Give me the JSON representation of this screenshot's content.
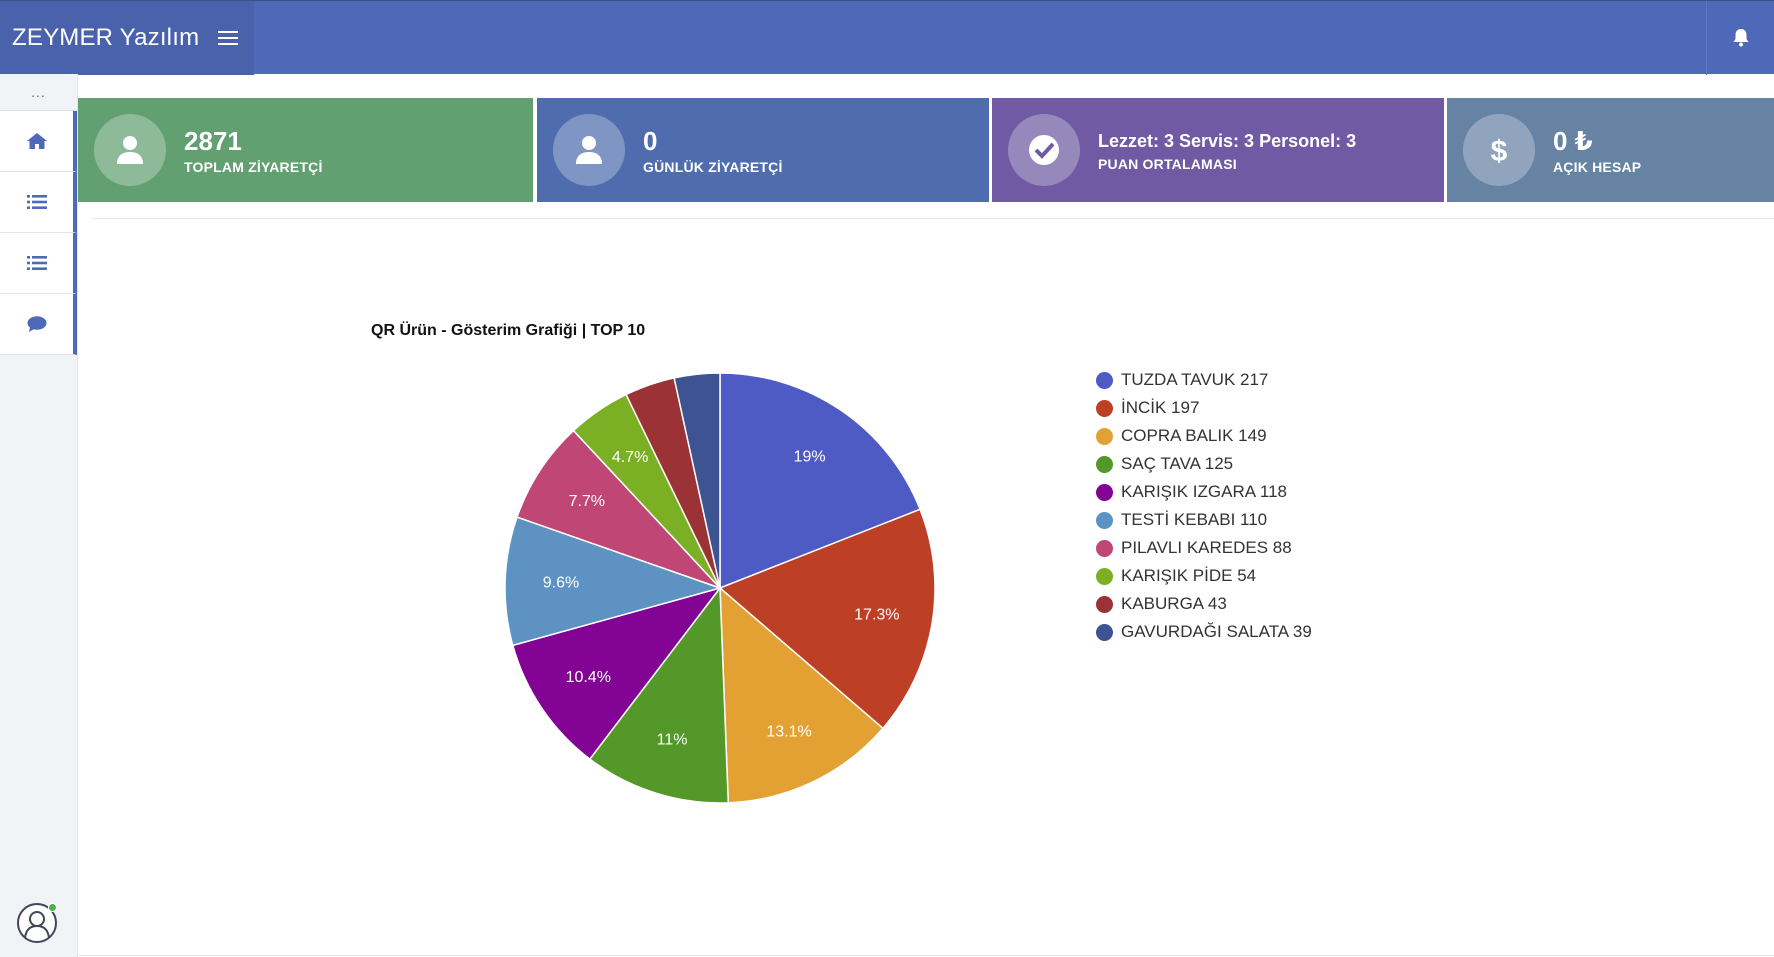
{
  "app": {
    "title": "ZEYMER Yazılım"
  },
  "sidebar": {
    "more_label": "...",
    "items": [
      {
        "icon": "home-icon"
      },
      {
        "icon": "list-icon"
      },
      {
        "icon": "list-icon"
      },
      {
        "icon": "comment-icon"
      }
    ]
  },
  "stats": [
    {
      "value": "2871",
      "label": "TOPLAM ZİYARETÇİ",
      "icon": "user-icon",
      "color": "#62a072"
    },
    {
      "value": "0",
      "label": "GÜNLÜK ZİYARETÇİ",
      "icon": "user-icon",
      "color": "#4e6cae"
    },
    {
      "value": "Lezzet: 3 Servis: 3 Personel: 3",
      "label": "PUAN ORTALAMASI",
      "icon": "check-icon",
      "color": "#705aa3"
    },
    {
      "value": "0 ₺",
      "label": "AÇIK HESAP",
      "icon": "dollar-icon",
      "color": "#6683a4"
    }
  ],
  "chart_data": {
    "type": "pie",
    "title": "QR Ürün - Gösterim Grafiği | TOP 10",
    "legend_position": "right",
    "slices": [
      {
        "name": "TUZDA TAVUK",
        "value": 217,
        "color": "#4f5bc4",
        "label": "19%"
      },
      {
        "name": "İNCİK",
        "value": 197,
        "color": "#bc3f26",
        "label": "17.3%"
      },
      {
        "name": "COPRA BALIK",
        "value": 149,
        "color": "#e3a133",
        "label": "13.1%"
      },
      {
        "name": "SAÇ TAVA",
        "value": 125,
        "color": "#54982a",
        "label": "11%"
      },
      {
        "name": "KARIŞIK IZGARA",
        "value": 118,
        "color": "#820394",
        "label": "10.4%"
      },
      {
        "name": "TESTİ KEBABI",
        "value": 110,
        "color": "#5d92c3",
        "label": "9.6%"
      },
      {
        "name": "PILAVLI KAREDES",
        "value": 88,
        "color": "#c04775",
        "label": "7.7%"
      },
      {
        "name": "KARIŞIK PİDE",
        "value": 54,
        "color": "#7baf24",
        "label": "4.7%"
      },
      {
        "name": "KABURGA",
        "value": 43,
        "color": "#9b3235",
        "label": ""
      },
      {
        "name": "GAVURDAĞI SALATA",
        "value": 39,
        "color": "#3e5391",
        "label": ""
      }
    ]
  }
}
